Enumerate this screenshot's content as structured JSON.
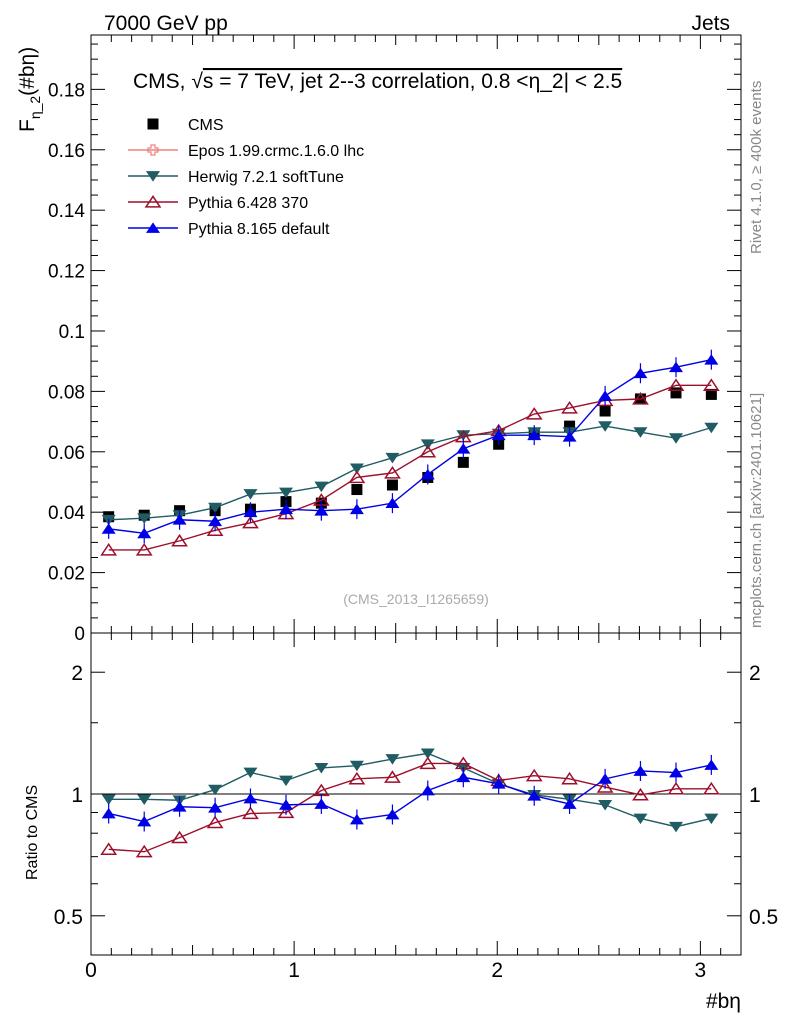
{
  "header": {
    "left_label": "7000 GeV pp",
    "right_label": "Jets"
  },
  "side_labels": {
    "rivet": "Rivet 4.1.0, ≥ 400k events",
    "mcplots": "mcplots.cern.ch [arXiv:2401.10621]"
  },
  "analysis_id": "(CMS_2013_I1265659)",
  "chart_data": [
    {
      "type": "scatter",
      "panel": "main",
      "title": "CMS, √s = 7 TeV, jet 2--3 correlation, 0.8 <η_2| < 2.5",
      "title_prefix": "CMS, ",
      "title_sqrt": "√",
      "title_suffix": "s = 7 TeV, jet 2--3 correlation, 0.8 <η_2| < 2.5",
      "ylabel": "F_η_2(#bη)",
      "ylabel_main": "F",
      "ylabel_sub": "η_2",
      "ylabel_tail": "(#bη)",
      "xlabel": "#bη",
      "xlim": [
        0,
        3.2
      ],
      "ylim": [
        0,
        0.198
      ],
      "yticks": [
        0,
        0.02,
        0.04,
        0.06,
        0.08,
        0.1,
        0.12,
        0.14,
        0.16,
        0.18
      ],
      "ytick_labels": [
        "0",
        "0.02",
        "0.04",
        "0.06",
        "0.08",
        "0.1",
        "0.12",
        "0.14",
        "0.16",
        "0.18"
      ],
      "legend": "top-left",
      "x": [
        0.087,
        0.262,
        0.436,
        0.611,
        0.785,
        0.96,
        1.134,
        1.309,
        1.484,
        1.658,
        1.833,
        2.007,
        2.182,
        2.356,
        2.531,
        2.705,
        2.88,
        3.054
      ],
      "series": [
        {
          "name": "CMS",
          "marker": "square",
          "color": "#000000",
          "values": [
            0.0385,
            0.039,
            0.0405,
            0.0405,
            0.041,
            0.0435,
            0.043,
            0.0475,
            0.049,
            0.0515,
            0.0565,
            0.0625,
            0.066,
            0.0685,
            0.0735,
            0.0775,
            0.0795,
            0.079
          ]
        },
        {
          "name": "Epos 1.99.crmc.1.6.0 lhc",
          "marker": "open-cross",
          "color": "#f08080",
          "values": []
        },
        {
          "name": "Herwig 7.2.1 softTune",
          "marker": "triangle-down",
          "color": "#1f5c63",
          "values": [
            0.0375,
            0.038,
            0.039,
            0.0415,
            0.046,
            0.0465,
            0.0485,
            0.0545,
            0.058,
            0.0625,
            0.0655,
            0.066,
            0.0665,
            0.0665,
            0.0685,
            0.0665,
            0.0645,
            0.068
          ]
        },
        {
          "name": "Pythia 6.428 370",
          "marker": "open-triangle-up",
          "color": "#9e0f2c",
          "values": [
            0.0275,
            0.0275,
            0.0305,
            0.034,
            0.0365,
            0.0395,
            0.044,
            0.0515,
            0.053,
            0.06,
            0.065,
            0.067,
            0.0725,
            0.0745,
            0.077,
            0.0775,
            0.082,
            0.082
          ]
        },
        {
          "name": "Pythia 8.165 default",
          "marker": "triangle-up",
          "color": "#0000e6",
          "values": [
            0.0345,
            0.033,
            0.0375,
            0.037,
            0.04,
            0.041,
            0.0405,
            0.041,
            0.043,
            0.0525,
            0.061,
            0.0655,
            0.0655,
            0.065,
            0.0785,
            0.086,
            0.088,
            0.0905
          ]
        }
      ]
    },
    {
      "type": "scatter",
      "panel": "ratio",
      "ylabel": "Ratio to CMS",
      "xlabel": "#bη",
      "xlim": [
        0,
        3.2
      ],
      "ylim": [
        0.4,
        2.5
      ],
      "ylog": true,
      "yticks": [
        0.5,
        1,
        2
      ],
      "ytick_labels": [
        "0.5",
        "1",
        "2"
      ],
      "xticks": [
        0,
        1,
        2,
        3
      ],
      "xtick_labels": [
        "0",
        "1",
        "2",
        "3"
      ],
      "x": [
        0.087,
        0.262,
        0.436,
        0.611,
        0.785,
        0.96,
        1.134,
        1.309,
        1.484,
        1.658,
        1.833,
        2.007,
        2.182,
        2.356,
        2.531,
        2.705,
        2.88,
        3.054
      ],
      "series": [
        {
          "name": "Herwig 7.2.1 softTune",
          "marker": "triangle-down",
          "color": "#1f5c63",
          "values": [
            0.97,
            0.97,
            0.965,
            1.025,
            1.13,
            1.08,
            1.16,
            1.175,
            1.22,
            1.26,
            1.16,
            1.06,
            0.995,
            0.97,
            0.94,
            0.87,
            0.83,
            0.87
          ]
        },
        {
          "name": "Pythia 6.428 370",
          "marker": "open-triangle-up",
          "color": "#9e0f2c",
          "values": [
            0.73,
            0.72,
            0.78,
            0.85,
            0.895,
            0.9,
            1.02,
            1.09,
            1.1,
            1.19,
            1.19,
            1.08,
            1.11,
            1.09,
            1.04,
            0.995,
            1.03,
            1.03
          ]
        },
        {
          "name": "Pythia 8.165 default",
          "marker": "triangle-up",
          "color": "#0000e6",
          "values": [
            0.895,
            0.855,
            0.93,
            0.925,
            0.975,
            0.94,
            0.945,
            0.865,
            0.89,
            1.02,
            1.1,
            1.06,
            0.99,
            0.945,
            1.09,
            1.14,
            1.13,
            1.18
          ]
        }
      ]
    }
  ]
}
